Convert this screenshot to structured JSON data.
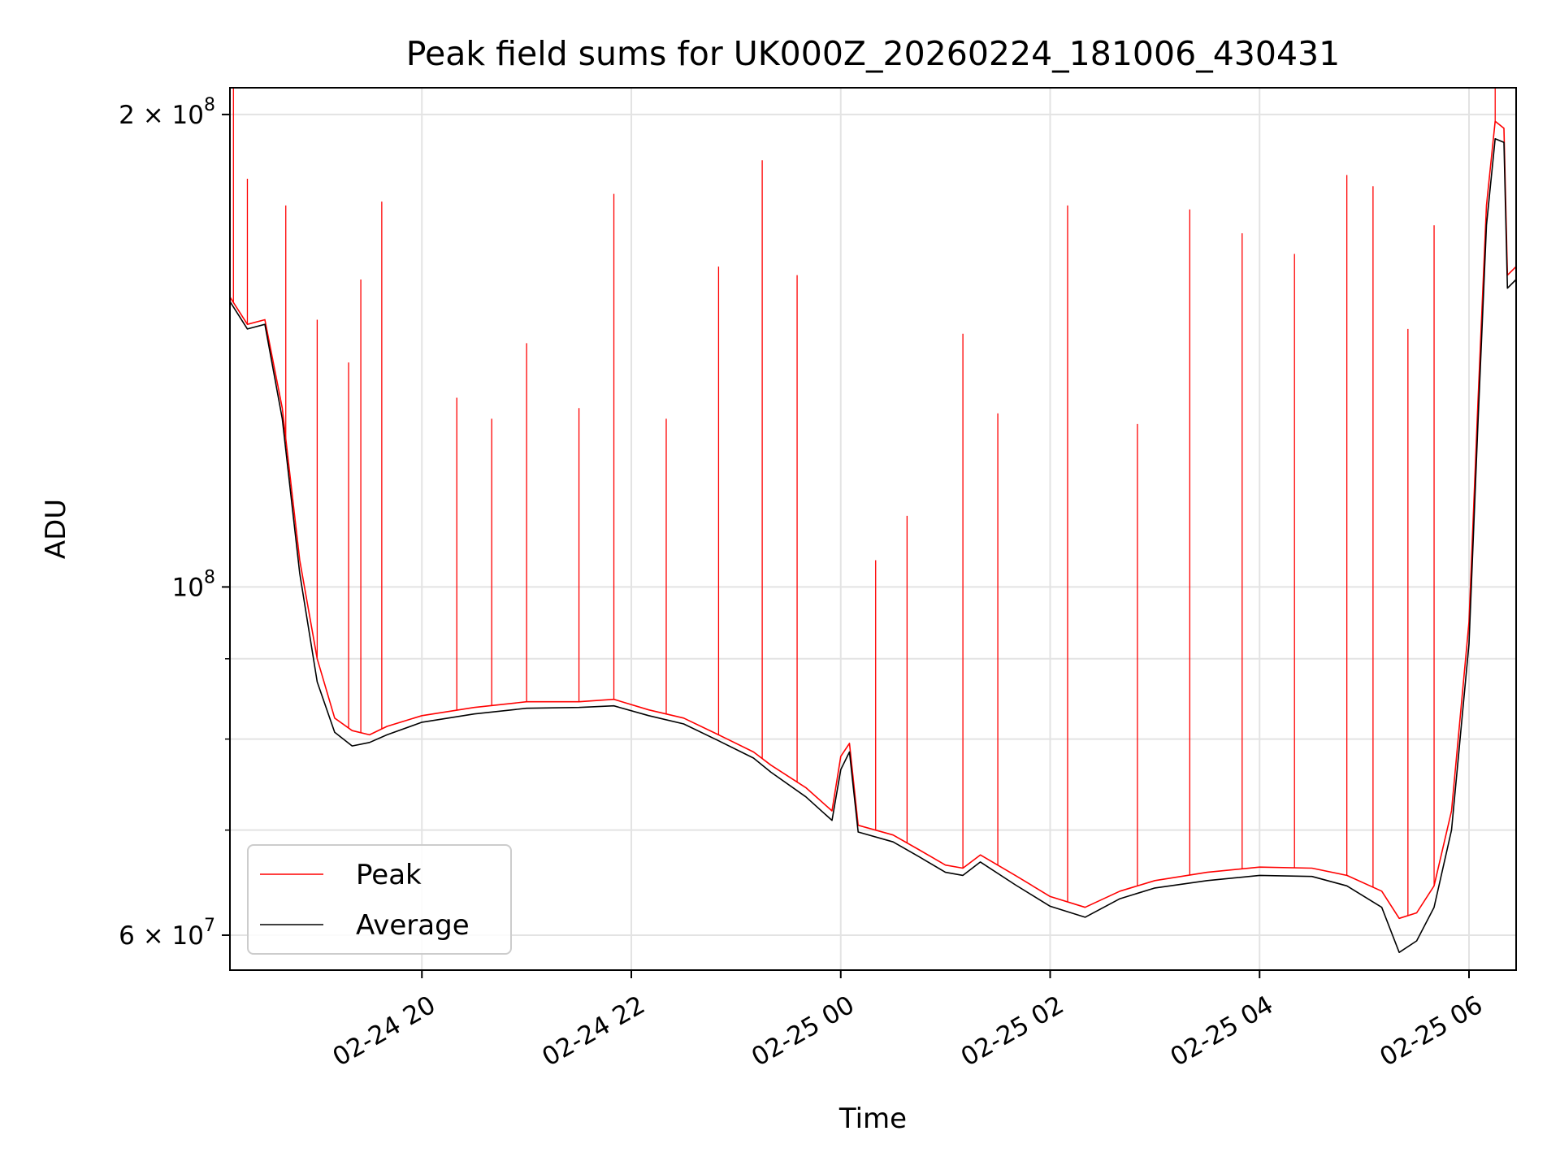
{
  "chart_data": {
    "type": "line",
    "title": "Peak field sums for UK000Z_20260224_181006_430431",
    "xlabel": "Time",
    "ylabel": "ADU",
    "x_axis_type": "time",
    "y_scale": "log",
    "xlim": [
      "2026-02-24 18:10",
      "2026-02-25 06:27"
    ],
    "ylim": [
      57000000,
      208000000
    ],
    "x_ticks": [
      {
        "value": "2026-02-24 20:00",
        "label": "02-24 20"
      },
      {
        "value": "2026-02-24 22:00",
        "label": "02-24 22"
      },
      {
        "value": "2026-02-25 00:00",
        "label": "02-25 00"
      },
      {
        "value": "2026-02-25 02:00",
        "label": "02-25 02"
      },
      {
        "value": "2026-02-25 04:00",
        "label": "02-25 04"
      },
      {
        "value": "2026-02-25 06:00",
        "label": "02-25 06"
      }
    ],
    "y_major_ticks": [
      {
        "value": 200000000,
        "mantissa": "2",
        "exponent": "8",
        "prefix": "2 × 10"
      },
      {
        "value": 100000000,
        "mantissa": "",
        "exponent": "8",
        "prefix": "10"
      },
      {
        "value": 60000000,
        "mantissa": "6",
        "exponent": "7",
        "prefix": "6 × 10"
      }
    ],
    "y_minor_ticks": [
      70000000,
      80000000,
      90000000
    ],
    "grid": true,
    "legend_placement": "lower-left",
    "series": [
      {
        "name": "Peak",
        "color": "#ff0000",
        "points": [
          [
            "2026-02-24 18:10",
            153000000
          ],
          [
            "2026-02-24 18:20",
            147000000
          ],
          [
            "2026-02-24 18:30",
            148000000
          ],
          [
            "2026-02-24 18:40",
            130000000
          ],
          [
            "2026-02-24 18:50",
            104000000
          ],
          [
            "2026-02-24 19:00",
            90000000
          ],
          [
            "2026-02-24 19:10",
            82500000
          ],
          [
            "2026-02-24 19:20",
            81000000
          ],
          [
            "2026-02-24 19:30",
            80500000
          ],
          [
            "2026-02-24 19:40",
            81500000
          ],
          [
            "2026-02-24 20:00",
            82800000
          ],
          [
            "2026-02-24 20:30",
            83800000
          ],
          [
            "2026-02-24 21:00",
            84500000
          ],
          [
            "2026-02-24 21:30",
            84500000
          ],
          [
            "2026-02-24 21:50",
            84800000
          ],
          [
            "2026-02-24 22:10",
            83500000
          ],
          [
            "2026-02-24 22:30",
            82500000
          ],
          [
            "2026-02-24 22:50",
            80500000
          ],
          [
            "2026-02-24 23:10",
            78500000
          ],
          [
            "2026-02-24 23:20",
            77000000
          ],
          [
            "2026-02-24 23:40",
            74500000
          ],
          [
            "2026-02-24 23:55",
            72000000
          ],
          [
            "2026-02-25 00:00",
            78000000
          ],
          [
            "2026-02-25 00:05",
            79500000
          ],
          [
            "2026-02-25 00:10",
            70500000
          ],
          [
            "2026-02-25 00:30",
            69500000
          ],
          [
            "2026-02-25 00:45",
            68000000
          ],
          [
            "2026-02-25 01:00",
            66500000
          ],
          [
            "2026-02-25 01:10",
            66200000
          ],
          [
            "2026-02-25 01:20",
            67500000
          ],
          [
            "2026-02-25 01:40",
            65500000
          ],
          [
            "2026-02-25 02:00",
            63500000
          ],
          [
            "2026-02-25 02:20",
            62500000
          ],
          [
            "2026-02-25 02:40",
            64000000
          ],
          [
            "2026-02-25 03:00",
            65000000
          ],
          [
            "2026-02-25 03:30",
            65800000
          ],
          [
            "2026-02-25 04:00",
            66300000
          ],
          [
            "2026-02-25 04:30",
            66200000
          ],
          [
            "2026-02-25 04:50",
            65500000
          ],
          [
            "2026-02-25 05:10",
            64000000
          ],
          [
            "2026-02-25 05:20",
            61500000
          ],
          [
            "2026-02-25 05:30",
            62000000
          ],
          [
            "2026-02-25 05:40",
            64500000
          ],
          [
            "2026-02-25 05:50",
            72000000
          ],
          [
            "2026-02-25 06:00",
            95000000
          ],
          [
            "2026-02-25 06:05",
            130000000
          ],
          [
            "2026-02-25 06:10",
            175000000
          ],
          [
            "2026-02-25 06:15",
            198000000
          ],
          [
            "2026-02-25 06:20",
            196000000
          ],
          [
            "2026-02-25 06:22",
            158000000
          ],
          [
            "2026-02-25 06:27",
            160000000
          ]
        ],
        "spikes": [
          [
            "2026-02-24 18:12",
            210000000
          ],
          [
            "2026-02-24 18:20",
            182000000
          ],
          [
            "2026-02-24 18:42",
            175000000
          ],
          [
            "2026-02-24 19:00",
            148000000
          ],
          [
            "2026-02-24 19:18",
            139000000
          ],
          [
            "2026-02-24 19:25",
            157000000
          ],
          [
            "2026-02-24 19:37",
            176000000
          ],
          [
            "2026-02-24 20:20",
            132000000
          ],
          [
            "2026-02-24 20:40",
            128000000
          ],
          [
            "2026-02-24 21:00",
            143000000
          ],
          [
            "2026-02-24 21:30",
            130000000
          ],
          [
            "2026-02-24 21:50",
            178000000
          ],
          [
            "2026-02-24 22:20",
            128000000
          ],
          [
            "2026-02-24 22:50",
            160000000
          ],
          [
            "2026-02-24 23:15",
            187000000
          ],
          [
            "2026-02-24 23:35",
            158000000
          ],
          [
            "2026-02-25 00:20",
            104000000
          ],
          [
            "2026-02-25 00:38",
            111000000
          ],
          [
            "2026-02-25 01:10",
            145000000
          ],
          [
            "2026-02-25 01:30",
            129000000
          ],
          [
            "2026-02-25 02:10",
            175000000
          ],
          [
            "2026-02-25 02:50",
            127000000
          ],
          [
            "2026-02-25 03:20",
            174000000
          ],
          [
            "2026-02-25 03:50",
            168000000
          ],
          [
            "2026-02-25 04:20",
            163000000
          ],
          [
            "2026-02-25 04:50",
            183000000
          ],
          [
            "2026-02-25 05:05",
            180000000
          ],
          [
            "2026-02-25 05:25",
            146000000
          ],
          [
            "2026-02-25 05:40",
            170000000
          ],
          [
            "2026-02-25 06:15",
            208000000
          ]
        ]
      },
      {
        "name": "Average",
        "color": "#000000",
        "points": [
          [
            "2026-02-24 18:10",
            152000000
          ],
          [
            "2026-02-24 18:20",
            146000000
          ],
          [
            "2026-02-24 18:30",
            147000000
          ],
          [
            "2026-02-24 18:40",
            128000000
          ],
          [
            "2026-02-24 18:50",
            102000000
          ],
          [
            "2026-02-24 19:00",
            87000000
          ],
          [
            "2026-02-24 19:10",
            80800000
          ],
          [
            "2026-02-24 19:20",
            79200000
          ],
          [
            "2026-02-24 19:30",
            79600000
          ],
          [
            "2026-02-24 19:40",
            80500000
          ],
          [
            "2026-02-24 20:00",
            82000000
          ],
          [
            "2026-02-24 20:30",
            83000000
          ],
          [
            "2026-02-24 21:00",
            83700000
          ],
          [
            "2026-02-24 21:30",
            83800000
          ],
          [
            "2026-02-24 21:50",
            84000000
          ],
          [
            "2026-02-24 22:10",
            82800000
          ],
          [
            "2026-02-24 22:30",
            81800000
          ],
          [
            "2026-02-24 22:50",
            79800000
          ],
          [
            "2026-02-24 23:10",
            77800000
          ],
          [
            "2026-02-24 23:20",
            76200000
          ],
          [
            "2026-02-24 23:40",
            73500000
          ],
          [
            "2026-02-24 23:55",
            71000000
          ],
          [
            "2026-02-25 00:00",
            76500000
          ],
          [
            "2026-02-25 00:05",
            78500000
          ],
          [
            "2026-02-25 00:10",
            69800000
          ],
          [
            "2026-02-25 00:30",
            68800000
          ],
          [
            "2026-02-25 00:45",
            67300000
          ],
          [
            "2026-02-25 01:00",
            65800000
          ],
          [
            "2026-02-25 01:10",
            65500000
          ],
          [
            "2026-02-25 01:20",
            66800000
          ],
          [
            "2026-02-25 01:40",
            64600000
          ],
          [
            "2026-02-25 02:00",
            62600000
          ],
          [
            "2026-02-25 02:20",
            61600000
          ],
          [
            "2026-02-25 02:40",
            63300000
          ],
          [
            "2026-02-25 03:00",
            64300000
          ],
          [
            "2026-02-25 03:30",
            65000000
          ],
          [
            "2026-02-25 04:00",
            65500000
          ],
          [
            "2026-02-25 04:30",
            65400000
          ],
          [
            "2026-02-25 04:50",
            64500000
          ],
          [
            "2026-02-25 05:10",
            62500000
          ],
          [
            "2026-02-25 05:20",
            58500000
          ],
          [
            "2026-02-25 05:30",
            59500000
          ],
          [
            "2026-02-25 05:40",
            62500000
          ],
          [
            "2026-02-25 05:50",
            70000000
          ],
          [
            "2026-02-25 06:00",
            92000000
          ],
          [
            "2026-02-25 06:05",
            126000000
          ],
          [
            "2026-02-25 06:10",
            170000000
          ],
          [
            "2026-02-25 06:15",
            193000000
          ],
          [
            "2026-02-25 06:20",
            192000000
          ],
          [
            "2026-02-25 06:22",
            155000000
          ],
          [
            "2026-02-25 06:27",
            157000000
          ]
        ]
      }
    ]
  }
}
